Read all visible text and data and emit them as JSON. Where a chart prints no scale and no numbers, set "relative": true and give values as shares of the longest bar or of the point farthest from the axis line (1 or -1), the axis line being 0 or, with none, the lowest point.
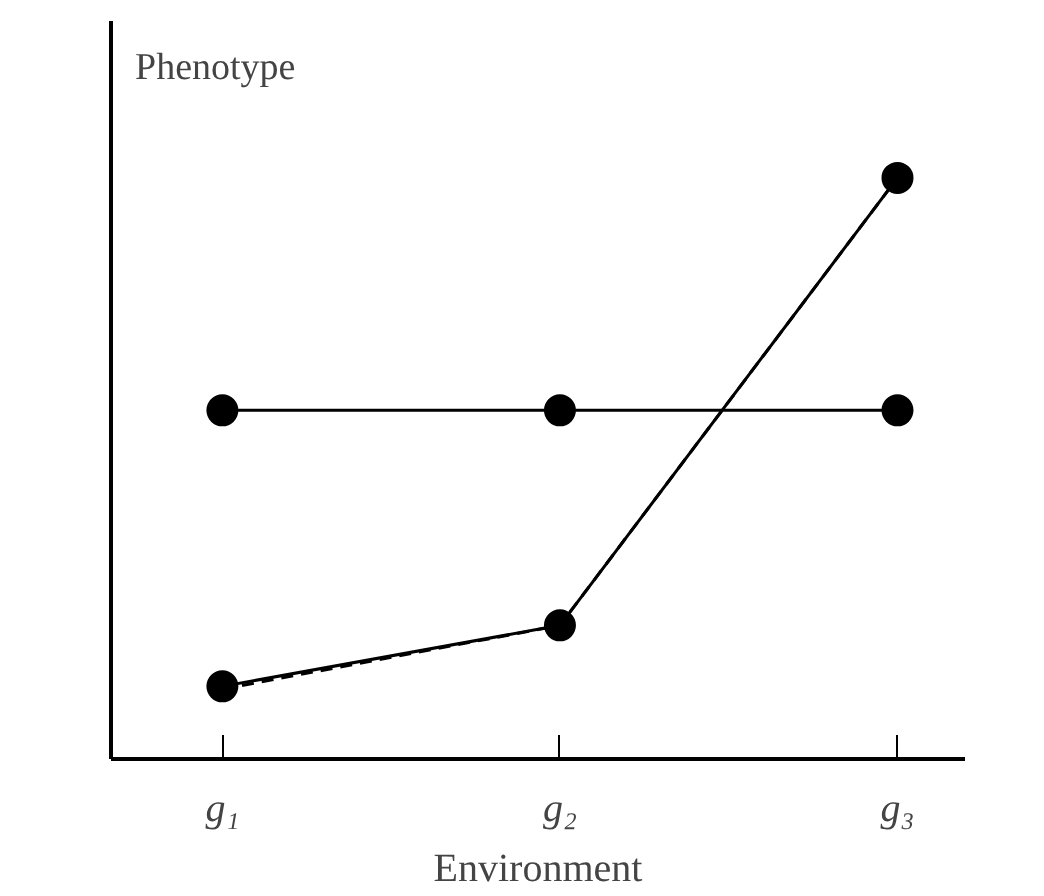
{
  "chart_data": {
    "type": "line",
    "relative": true,
    "ylabel": "Phenotype",
    "xlabel": "Environment",
    "categories": [
      "g₁",
      "g₂",
      "g₃"
    ],
    "series": [
      {
        "color": "#000000",
        "values": [
          0.6,
          0.6,
          0.6
        ],
        "marker": "circle",
        "line_style": "solid"
      },
      {
        "color": "#000000",
        "values": [
          0.125,
          0.23,
          1
        ],
        "marker": "circle",
        "line_style": "solid"
      },
      {
        "color": "#000000",
        "values": [
          0.12,
          0.23,
          1
        ],
        "marker": "none",
        "line_style": "dashed"
      }
    ],
    "grid": false
  }
}
